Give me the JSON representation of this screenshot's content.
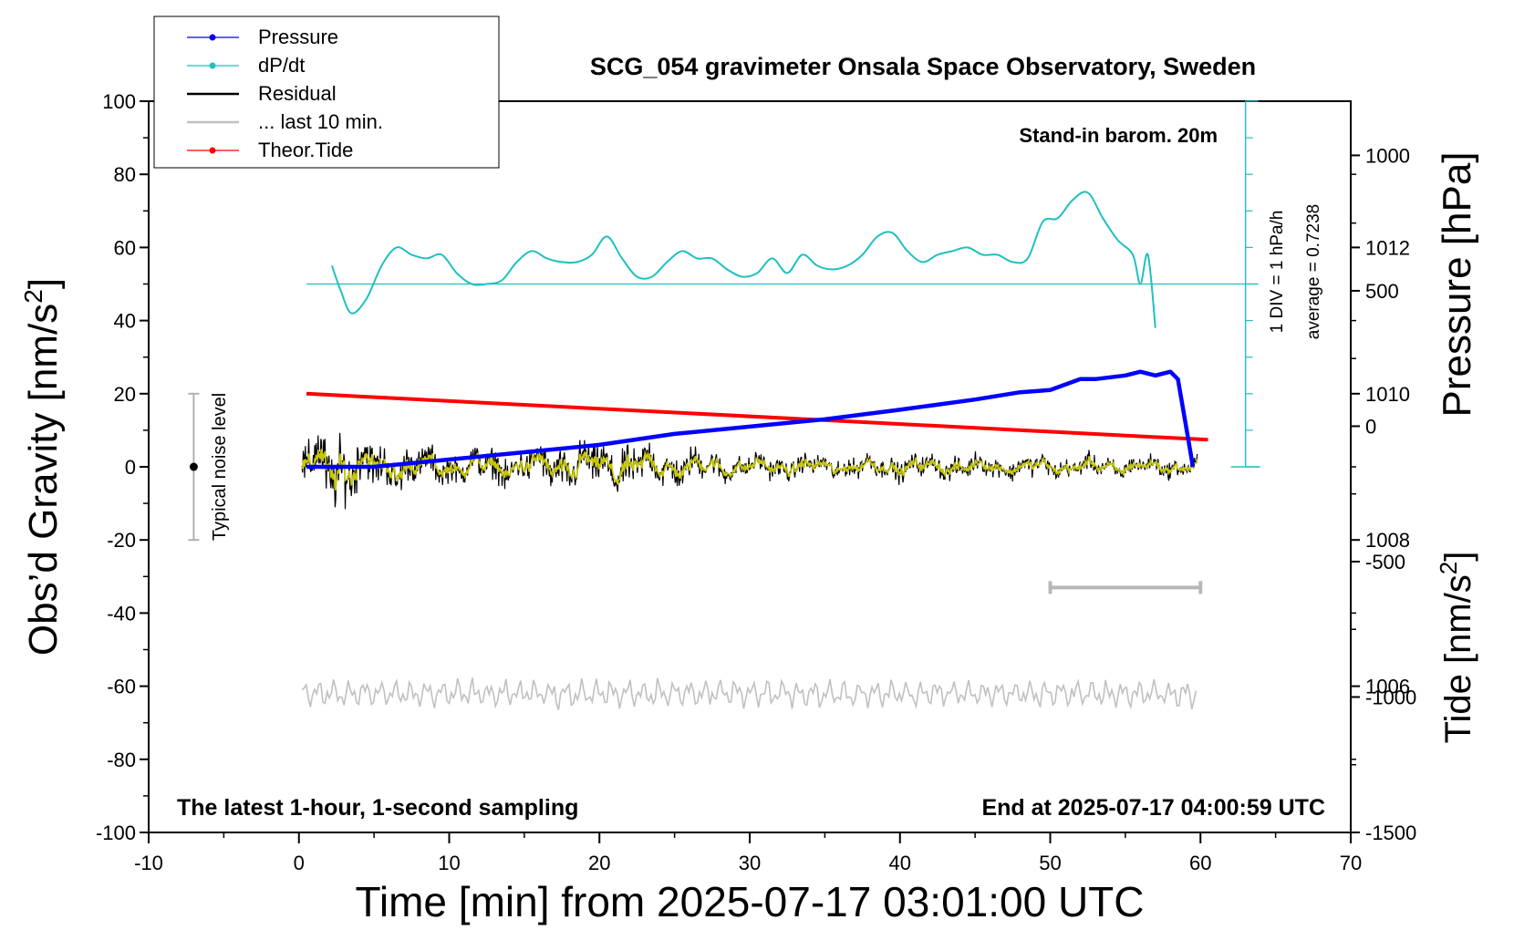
{
  "chart_data": {
    "type": "line",
    "title": "SCG_054 gravimeter Onsala Space Observatory, Sweden",
    "xlabel": "Time [min] from 2025-07-17 03:01:00 UTC",
    "ylabel_left_prefix": "Obs’d Gravity [nm/s",
    "ylabel_left_sup": "2",
    "ylabel_left_suffix": "]",
    "ylabel_right_top": "Pressure [hPa]",
    "ylabel_right_bottom_prefix": "Tide [nm/s",
    "ylabel_right_bottom_sup": "2",
    "ylabel_right_bottom_suffix": "]",
    "xlim": [
      -10,
      70
    ],
    "ylim": [
      -100,
      100
    ],
    "pressure_axis_range": [
      1004,
      1014
    ],
    "tide_axis_range": [
      -1500,
      1200
    ],
    "x_ticks": [
      "-10",
      "0",
      "10",
      "20",
      "30",
      "40",
      "50",
      "60",
      "70"
    ],
    "y_ticks": [
      "100",
      "80",
      "60",
      "40",
      "20",
      "0",
      "-20",
      "-40",
      "-60",
      "-80",
      "-100"
    ],
    "pressure_ticks": [
      "1012",
      "1010",
      "1008",
      "1006"
    ],
    "tide_ticks": [
      "1000",
      "500",
      "0",
      "-500",
      "-1000",
      "-1500"
    ],
    "grid": false,
    "legend_position": "top-left",
    "legend": [
      {
        "label": "Pressure",
        "color": "#0000ff",
        "marker": true
      },
      {
        "label": "dP/dt",
        "color": "#20c0c0",
        "marker": true
      },
      {
        "label": "Residual",
        "color": "#000000",
        "marker": false
      },
      {
        "label": "... last 10 min.",
        "color": "#c0c0c0",
        "marker": false
      },
      {
        "label": "Theor.Tide",
        "color": "#ff0000",
        "marker": true
      }
    ],
    "annotations": {
      "barometer": "Stand-in barom. 20m",
      "dpdt_scale": "1 DIV = 1 hPa/h",
      "dpdt_average": "average = 0.7238",
      "noise_label": "Typical noise level",
      "sampling": "The latest 1-hour, 1-second sampling",
      "end_time": "End at 2025-07-17 04:00:59 UTC"
    },
    "colors": {
      "pressure": "#0000ff",
      "dpdt": "#20c0c0",
      "residual": "#000000",
      "residual_smooth": "#c8c800",
      "last10": "#c0c0c0",
      "tide": "#ff0000"
    },
    "series": [
      {
        "name": "Pressure",
        "unit": "hPa",
        "x": [
          0.5,
          5,
          10,
          15,
          20,
          25,
          30,
          35,
          40,
          45,
          48,
          50,
          52,
          53,
          55,
          56,
          57,
          58,
          58.5,
          59,
          59.5
        ],
        "values": [
          1009.0,
          1009.0,
          1009.1,
          1009.2,
          1009.3,
          1009.45,
          1009.55,
          1009.65,
          1009.78,
          1009.92,
          1010.02,
          1010.05,
          1010.2,
          1010.2,
          1010.25,
          1010.3,
          1010.25,
          1010.3,
          1010.2,
          1009.6,
          1009.0
        ]
      },
      {
        "name": "dP/dt",
        "unit": "gravity-scale",
        "x": [
          2.2,
          2.8,
          3.5,
          4.5,
          5.5,
          6.5,
          7.5,
          8.5,
          9.5,
          10.5,
          11.5,
          12.5,
          13.5,
          14.5,
          15.5,
          16.5,
          17.5,
          18.5,
          19.5,
          20.5,
          21.5,
          22.5,
          23.5,
          24.5,
          25.5,
          26.5,
          27.5,
          28.5,
          29.5,
          30.5,
          31.5,
          32.5,
          33.5,
          34.5,
          35.5,
          36.5,
          37.5,
          38.5,
          39.5,
          40.5,
          41.5,
          42.5,
          43.5,
          44.5,
          45.5,
          46.5,
          47.5,
          48.5,
          49.5,
          50.5,
          51.5,
          52.5,
          53.5,
          54.5,
          55.5,
          56.0,
          56.5,
          57.0
        ],
        "values": [
          55,
          48,
          42,
          46,
          55,
          60,
          58,
          57,
          58,
          53,
          50,
          50,
          51,
          56,
          59,
          57,
          56,
          56,
          58,
          63,
          57,
          52,
          52,
          56,
          59,
          57,
          57,
          54,
          52,
          53,
          57,
          53,
          58,
          55,
          54,
          55,
          58,
          63,
          64,
          59,
          56,
          58,
          59,
          60,
          58,
          58,
          56,
          57,
          67,
          68,
          73,
          75,
          68,
          62,
          58,
          50,
          58,
          38
        ]
      },
      {
        "name": "Residual",
        "unit": "nm/s2",
        "x_start": 0.2,
        "x_end": 59.8,
        "noise_amplitude": [
          [
            0.2,
            7
          ],
          [
            2.5,
            10
          ],
          [
            4.5,
            7
          ],
          [
            10,
            4
          ],
          [
            19,
            6
          ],
          [
            22,
            6
          ],
          [
            30,
            3
          ],
          [
            45,
            3
          ],
          [
            59.8,
            2.5
          ]
        ]
      },
      {
        "name": "... last 10 min.",
        "unit": "nm/s2",
        "x_start": 0.2,
        "x_end": 59.8,
        "center": -62,
        "amplitude": 3
      },
      {
        "name": "Theor.Tide",
        "unit": "nm/s2",
        "x": [
          0.5,
          60.5
        ],
        "values": [
          120,
          -50
        ]
      }
    ],
    "noise_bar": {
      "x": -7,
      "ymin": -20,
      "ymax": 20,
      "center": 0
    },
    "scale_bar": {
      "x0": 50,
      "x1": 60,
      "y": -33
    }
  }
}
